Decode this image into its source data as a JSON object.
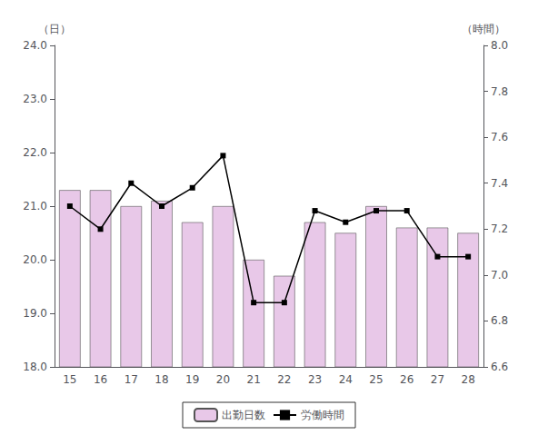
{
  "chart_data": {
    "type": "bar",
    "categories": [
      "15",
      "16",
      "17",
      "18",
      "19",
      "20",
      "21",
      "22",
      "23",
      "24",
      "25",
      "26",
      "27",
      "28"
    ],
    "series": [
      {
        "name": "出勤日数",
        "type": "bar",
        "color": "#e8c8e8",
        "values": [
          21.3,
          21.3,
          21.0,
          21.1,
          20.7,
          21.0,
          20.0,
          19.7,
          20.7,
          20.5,
          21.0,
          20.6,
          20.6,
          20.5
        ]
      },
      {
        "name": "労働時間",
        "type": "line",
        "axis": "y2",
        "color": "#000000",
        "marker": "square",
        "values": [
          7.3,
          7.2,
          7.4,
          7.3,
          7.38,
          7.52,
          6.88,
          6.88,
          7.28,
          7.23,
          7.28,
          7.28,
          7.08,
          7.08
        ]
      }
    ],
    "ylabel": "（日）",
    "y2label": "（時間）",
    "ylim": [
      18.0,
      24.0
    ],
    "yticks": [
      {
        "value": 18,
        "label": "18.0"
      },
      {
        "value": 19,
        "label": "19.0"
      },
      {
        "value": 20,
        "label": "20.0"
      },
      {
        "value": 21,
        "label": "21.0"
      },
      {
        "value": 22,
        "label": "22.0"
      },
      {
        "value": 23,
        "label": "23.0"
      },
      {
        "value": 24,
        "label": "24.0"
      }
    ],
    "y2lim": [
      6.6,
      8.0
    ],
    "y2ticks": [
      6.6,
      6.8,
      {
        "value": 7,
        "label": "7.0"
      },
      7.2,
      7.4,
      7.6,
      7.8,
      {
        "value": 8,
        "label": "8.0"
      }
    ],
    "grid": false,
    "legend": "bottom"
  }
}
